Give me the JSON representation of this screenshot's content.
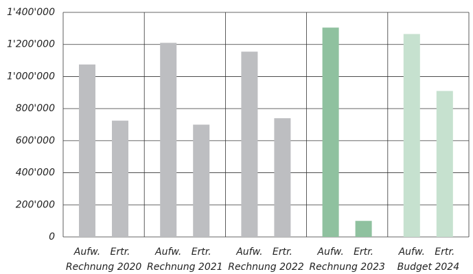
{
  "chart_data": {
    "type": "grouped_bar",
    "categories": [
      "Rechnung 2020",
      "Rechnung 2021",
      "Rechnung 2022",
      "Rechnung 2023",
      "Budget 2024"
    ],
    "series": [
      {
        "name": "Aufw.",
        "values": [
          1075000,
          1210000,
          1155000,
          1305000,
          1265000
        ]
      },
      {
        "name": "Ertr.",
        "values": [
          725000,
          700000,
          740000,
          100000,
          910000
        ]
      }
    ],
    "group_colors": [
      "#bdbec1",
      "#bdbec1",
      "#bdbec1",
      "#8fc19f",
      "#c6e1cf"
    ],
    "ylim": [
      0,
      1400000
    ],
    "yticks": [
      0,
      {
        "value": 200000,
        "label": "200'000"
      },
      {
        "value": 400000,
        "label": "400'000"
      },
      {
        "value": 600000,
        "label": "600'000"
      },
      {
        "value": 800000,
        "label": "800'000"
      },
      {
        "value": 1000000,
        "label": "1'000'000"
      },
      {
        "value": 1200000,
        "label": "1'200'000"
      },
      {
        "value": 1400000,
        "label": "1'400'000"
      }
    ],
    "grid": true
  }
}
